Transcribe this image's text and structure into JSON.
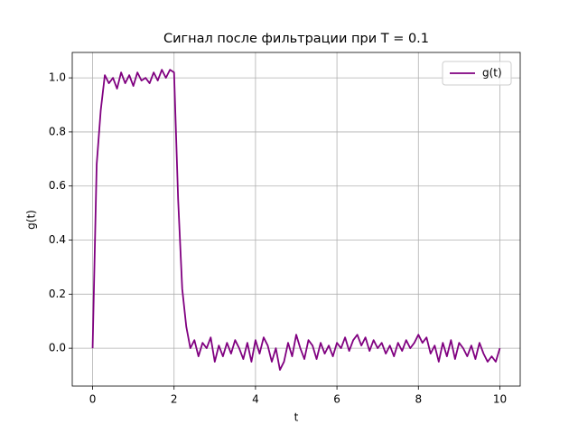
{
  "chart_data": {
    "type": "line",
    "title": "Сигнал после фильтрации при T = 0.1",
    "x_label": "t",
    "y_label": "g(t)",
    "x": [
      0,
      0.1,
      0.2,
      0.3,
      0.4,
      0.5,
      0.6,
      0.7,
      0.8,
      0.9,
      1.0,
      1.1,
      1.2,
      1.3,
      1.4,
      1.5,
      1.6,
      1.7,
      1.8,
      1.9,
      2.0,
      2.1,
      2.2,
      2.3,
      2.4,
      2.5,
      2.6,
      2.7,
      2.8,
      2.9,
      3.0,
      3.1,
      3.2,
      3.3,
      3.4,
      3.5,
      3.6,
      3.7,
      3.8,
      3.9,
      4.0,
      4.1,
      4.2,
      4.3,
      4.4,
      4.5,
      4.6,
      4.7,
      4.8,
      4.9,
      5.0,
      5.1,
      5.2,
      5.3,
      5.4,
      5.5,
      5.6,
      5.7,
      5.8,
      5.9,
      6.0,
      6.1,
      6.2,
      6.3,
      6.4,
      6.5,
      6.6,
      6.7,
      6.8,
      6.9,
      7.0,
      7.1,
      7.2,
      7.3,
      7.4,
      7.5,
      7.6,
      7.7,
      7.8,
      7.9,
      8.0,
      8.1,
      8.2,
      8.3,
      8.4,
      8.5,
      8.6,
      8.7,
      8.8,
      8.9,
      9.0,
      9.1,
      9.2,
      9.3,
      9.4,
      9.5,
      9.6,
      9.7,
      9.8,
      9.9,
      10.0
    ],
    "series": [
      {
        "name": "g(t)",
        "color": "#800080",
        "values": [
          0,
          0.68,
          0.88,
          1.01,
          0.98,
          1.0,
          0.96,
          1.02,
          0.98,
          1.01,
          0.97,
          1.02,
          0.99,
          1.0,
          0.98,
          1.02,
          0.99,
          1.03,
          1.0,
          1.03,
          1.02,
          0.55,
          0.22,
          0.08,
          0.0,
          0.03,
          -0.03,
          0.02,
          0.0,
          0.04,
          -0.05,
          0.01,
          -0.03,
          0.02,
          -0.02,
          0.03,
          0.0,
          -0.04,
          0.02,
          -0.05,
          0.03,
          -0.02,
          0.04,
          0.01,
          -0.05,
          0.0,
          -0.08,
          -0.05,
          0.02,
          -0.03,
          0.05,
          0.0,
          -0.04,
          0.03,
          0.01,
          -0.04,
          0.02,
          -0.02,
          0.01,
          -0.03,
          0.02,
          0.0,
          0.04,
          -0.01,
          0.03,
          0.05,
          0.01,
          0.04,
          -0.01,
          0.03,
          0.0,
          0.02,
          -0.02,
          0.01,
          -0.03,
          0.02,
          -0.01,
          0.03,
          0.0,
          0.02,
          0.05,
          0.02,
          0.04,
          -0.02,
          0.01,
          -0.05,
          0.02,
          -0.03,
          0.03,
          -0.04,
          0.02,
          0.0,
          -0.03,
          0.01,
          -0.04,
          0.02,
          -0.02,
          -0.05,
          -0.03,
          -0.05,
          0.0
        ]
      }
    ],
    "xlim": [
      -0.5,
      10.5
    ],
    "ylim": [
      -0.14,
      1.094
    ],
    "xticks": [
      0,
      2,
      4,
      6,
      8,
      10
    ],
    "yticks": [
      {
        "value": 0,
        "label": "0.0"
      },
      {
        "value": 0.2,
        "label": "0.2"
      },
      {
        "value": 0.4,
        "label": "0.4"
      },
      {
        "value": 0.6,
        "label": "0.6"
      },
      {
        "value": 0.8,
        "label": "0.8"
      },
      {
        "value": 1.0,
        "label": "1.0"
      }
    ],
    "grid": true,
    "legend": "upper-right"
  }
}
